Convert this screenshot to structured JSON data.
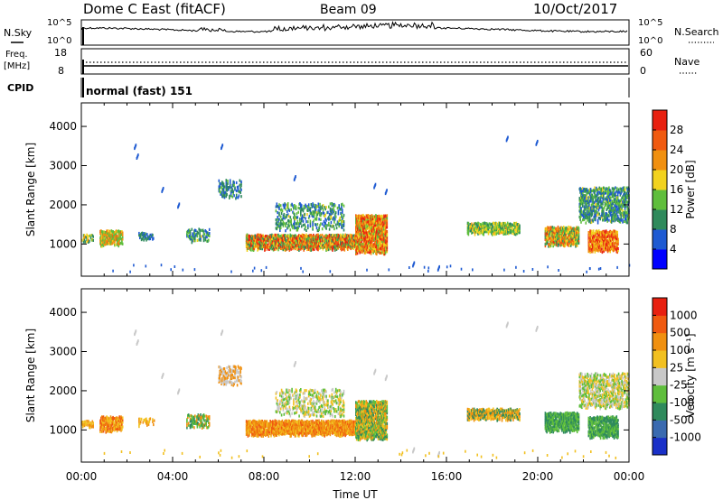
{
  "header": {
    "title": "Dome C East (fitACF)",
    "beam": "Beam 09",
    "date": "10/Oct/2017"
  },
  "top_panels": {
    "nsky_label": "N.Sky",
    "nsky_ticks": [
      "10^5",
      "10^0"
    ],
    "nsearch_label": "N.Search",
    "nsearch_ticks": [
      "10^5",
      "10^0"
    ],
    "freq_label": "Freq.",
    "freq_unit": "[MHz]",
    "freq_ticks": [
      "18",
      "8"
    ],
    "nave_label": "Nave",
    "nave_ticks": [
      "60",
      "0"
    ],
    "cpid_label": "CPID",
    "cpid_value": "normal (fast) 151"
  },
  "chart_data": [
    {
      "type": "heatmap",
      "name": "power",
      "ylabel": "Slant Range [km]",
      "ylim": [
        180,
        4600
      ],
      "yticks": [
        "1000",
        "2000",
        "3000",
        "4000"
      ],
      "xlim": [
        0,
        24
      ],
      "colorbar": {
        "label": "Power [dB]",
        "ticks": [
          "4",
          "8",
          "12",
          "16",
          "20",
          "24",
          "28"
        ],
        "colors": [
          "#0000ff",
          "#1e5ad2",
          "#2f8a5c",
          "#5fbe3c",
          "#f2d21e",
          "#f09010",
          "#f05a10",
          "#e82010"
        ]
      }
    },
    {
      "type": "heatmap",
      "name": "velocity",
      "ylabel": "Slant Range [km]",
      "ylim": [
        180,
        4600
      ],
      "yticks": [
        "1000",
        "2000",
        "3000",
        "4000"
      ],
      "xlim": [
        0,
        24
      ],
      "xticks": [
        "00:00",
        "04:00",
        "08:00",
        "12:00",
        "16:00",
        "20:00",
        "00:00"
      ],
      "xlabel": "Time UT",
      "colorbar": {
        "label": "Velocity [m s⁻¹]",
        "ticks": [
          "1000",
          "500",
          "100",
          "25",
          "-25",
          "-100",
          "-500",
          "-1000"
        ],
        "colors": [
          "#1a30c8",
          "#3a6ab0",
          "#2f8a5c",
          "#5fbe3c",
          "#c8c8c8",
          "#f2c020",
          "#f09010",
          "#f05a10",
          "#e82010"
        ]
      }
    }
  ]
}
